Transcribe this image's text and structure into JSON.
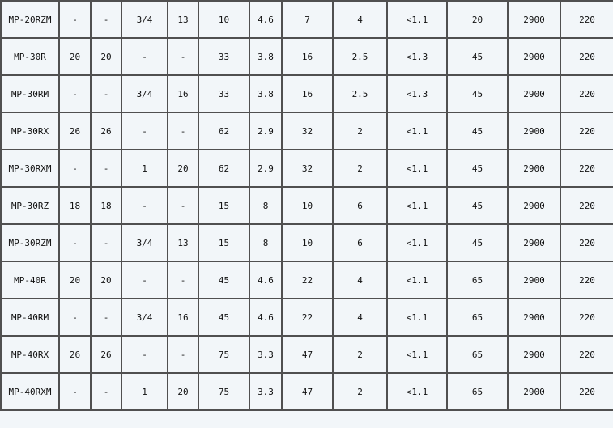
{
  "table": {
    "rows": [
      [
        "MP-20RZM",
        "-",
        "-",
        "3/4",
        "13",
        "10",
        "4.6",
        "7",
        "4",
        "<1.1",
        "20",
        "2900",
        "220"
      ],
      [
        "MP-30R",
        "20",
        "20",
        "-",
        "-",
        "33",
        "3.8",
        "16",
        "2.5",
        "<1.3",
        "45",
        "2900",
        "220"
      ],
      [
        "MP-30RM",
        "-",
        "-",
        "3/4",
        "16",
        "33",
        "3.8",
        "16",
        "2.5",
        "<1.3",
        "45",
        "2900",
        "220"
      ],
      [
        "MP-30RX",
        "26",
        "26",
        "-",
        "-",
        "62",
        "2.9",
        "32",
        "2",
        "<1.1",
        "45",
        "2900",
        "220"
      ],
      [
        "MP-30RXM",
        "-",
        "-",
        "1",
        "20",
        "62",
        "2.9",
        "32",
        "2",
        "<1.1",
        "45",
        "2900",
        "220"
      ],
      [
        "MP-30RZ",
        "18",
        "18",
        "-",
        "-",
        "15",
        "8",
        "10",
        "6",
        "<1.1",
        "45",
        "2900",
        "220"
      ],
      [
        "MP-30RZM",
        "-",
        "-",
        "3/4",
        "13",
        "15",
        "8",
        "10",
        "6",
        "<1.1",
        "45",
        "2900",
        "220"
      ],
      [
        "MP-40R",
        "20",
        "20",
        "-",
        "-",
        "45",
        "4.6",
        "22",
        "4",
        "<1.1",
        "65",
        "2900",
        "220"
      ],
      [
        "MP-40RM",
        "-",
        "-",
        "3/4",
        "16",
        "45",
        "4.6",
        "22",
        "4",
        "<1.1",
        "65",
        "2900",
        "220"
      ],
      [
        "MP-40RX",
        "26",
        "26",
        "-",
        "-",
        "75",
        "3.3",
        "47",
        "2",
        "<1.1",
        "65",
        "2900",
        "220"
      ],
      [
        "MP-40RXM",
        "-",
        "-",
        "1",
        "20",
        "75",
        "3.3",
        "47",
        "2",
        "<1.1",
        "65",
        "2900",
        "220"
      ]
    ]
  },
  "colors": {
    "background": "#f2f6f9",
    "border": "#505050",
    "text": "#111111"
  }
}
